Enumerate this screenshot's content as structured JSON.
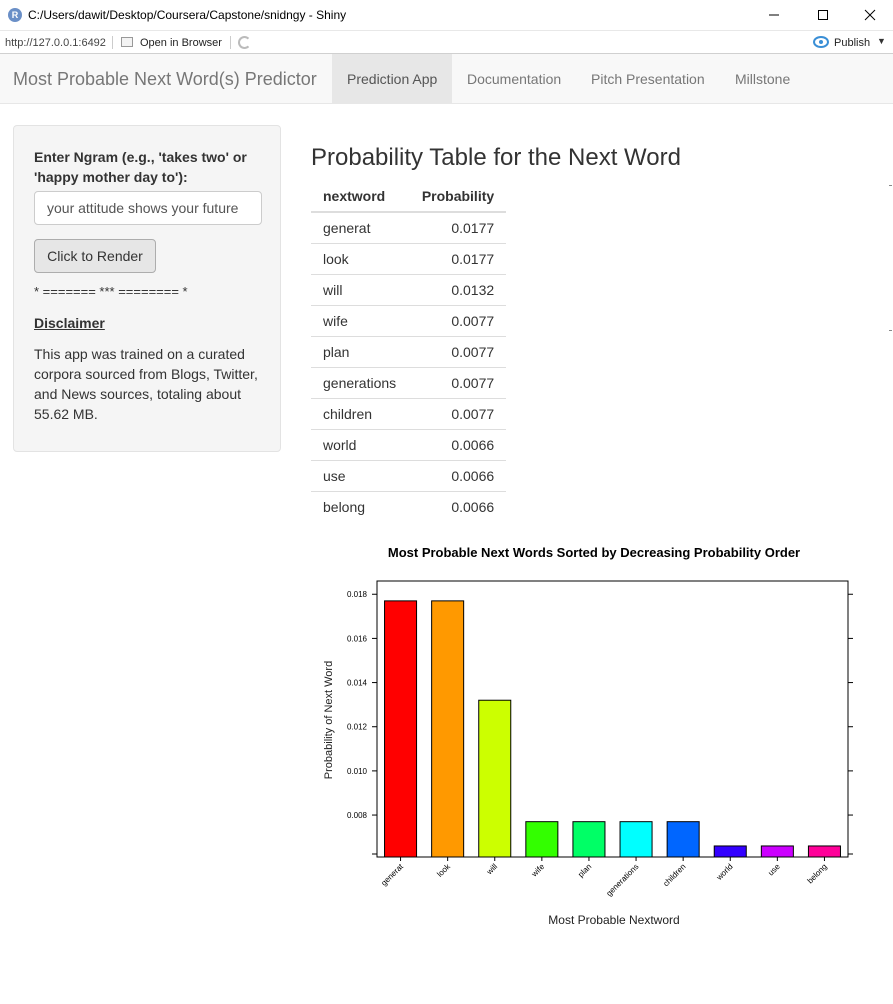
{
  "window": {
    "title": "C:/Users/dawit/Desktop/Coursera/Capstone/snidngy - Shiny",
    "app_icon": "R",
    "url": "http://127.0.0.1:6492",
    "open_in_browser": "Open in Browser",
    "publish": "Publish"
  },
  "navbar": {
    "brand": "Most Probable Next Word(s) Predictor",
    "tabs": [
      {
        "label": "Prediction App",
        "active": true
      },
      {
        "label": "Documentation",
        "active": false
      },
      {
        "label": "Pitch Presentation",
        "active": false
      },
      {
        "label": "Millstone",
        "active": false
      }
    ]
  },
  "sidebar": {
    "input_label": "Enter Ngram (e.g., 'takes two' or 'happy mother day to'):",
    "input_value": "your attitude shows your future",
    "button_label": "Click to Render",
    "separator": "* ======= *** ======== *",
    "disclaimer_heading": "Disclaimer",
    "disclaimer_text": "This app was trained on a curated corpora sourced from Blogs, Twitter, and News sources, totaling about 55.62 MB."
  },
  "main": {
    "title": "Probability Table for the Next Word",
    "table": {
      "columns": [
        "nextword",
        "Probability"
      ],
      "rows": [
        [
          "generat",
          "0.0177"
        ],
        [
          "look",
          "0.0177"
        ],
        [
          "will",
          "0.0132"
        ],
        [
          "wife",
          "0.0077"
        ],
        [
          "plan",
          "0.0077"
        ],
        [
          "generations",
          "0.0077"
        ],
        [
          "children",
          "0.0077"
        ],
        [
          "world",
          "0.0066"
        ],
        [
          "use",
          "0.0066"
        ],
        [
          "belong",
          "0.0066"
        ]
      ]
    }
  },
  "chart_data": {
    "type": "bar",
    "title": "Most Probable Next Words Sorted by Decreasing Probability Order",
    "xlabel": "Most Probable Nextword",
    "ylabel": "Probability of Next Word",
    "categories": [
      "generat",
      "look",
      "will",
      "wife",
      "plan",
      "generations",
      "children",
      "world",
      "use",
      "belong"
    ],
    "values": [
      0.0177,
      0.0177,
      0.0132,
      0.0077,
      0.0077,
      0.0077,
      0.0077,
      0.0066,
      0.0066,
      0.0066
    ],
    "colors": [
      "#ff0000",
      "#ff9900",
      "#ccff00",
      "#33ff00",
      "#00ff66",
      "#00ffff",
      "#0066ff",
      "#3300ff",
      "#cc00ff",
      "#ff0099"
    ],
    "yticks": [
      "0.008",
      "0.010",
      "0.012",
      "0.014",
      "0.016",
      "0.018"
    ],
    "ylim": [
      0.0061,
      0.0186
    ],
    "grid": false
  }
}
